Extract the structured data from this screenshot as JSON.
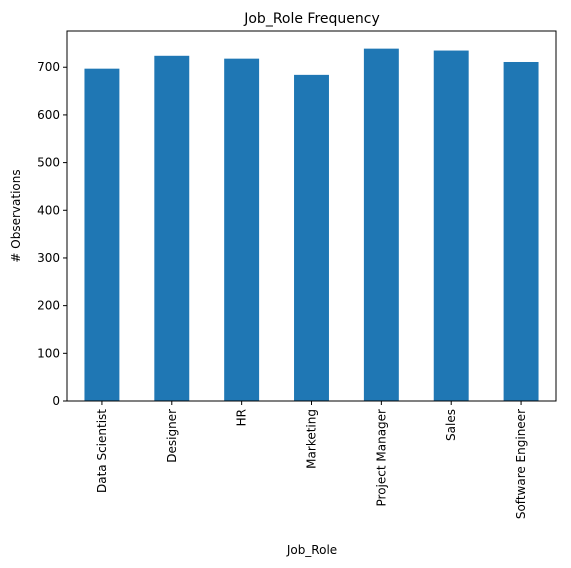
{
  "chart_data": {
    "type": "bar",
    "title": "Job_Role Frequency",
    "xlabel": "Job_Role",
    "ylabel": "# Observations",
    "categories": [
      "Data Scientist",
      "Designer",
      "HR",
      "Marketing",
      "Project Manager",
      "Sales",
      "Software Engineer"
    ],
    "values": [
      697,
      724,
      718,
      684,
      739,
      735,
      711
    ],
    "ylim": [
      0,
      776
    ],
    "yticks": [
      0,
      100,
      200,
      300,
      400,
      500,
      600,
      700
    ],
    "bar_color": "#1f77b4",
    "grid": false,
    "legend": "none"
  }
}
